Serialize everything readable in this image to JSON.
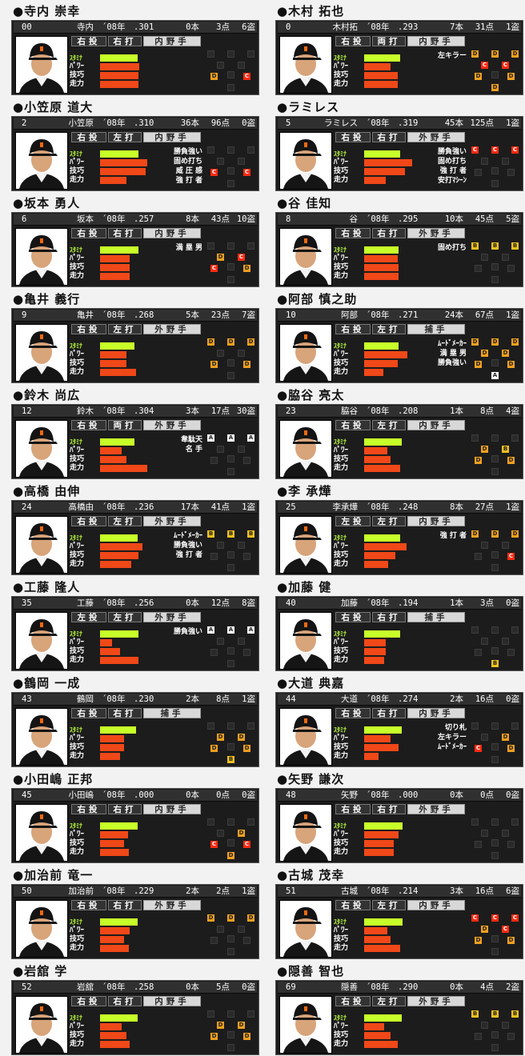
{
  "players": [
    {
      "name": "●寺内 崇幸",
      "num": "00",
      "short": "寺内",
      "year": "´08年",
      "avg": ".301",
      "hr": "0本",
      "rbi": "3点",
      "sb": "6盗",
      "throws": "右投",
      "bats": "右打",
      "position": "内野手",
      "stamina": 0.78,
      "power": 0.82,
      "skill": 0.8,
      "speed": 0.8,
      "skills": [],
      "fielding": {
        "LF": "",
        "CF": "",
        "RF": "",
        "SS": "",
        "2B": "",
        "3B": "D",
        "1B": "C",
        "P": "",
        "C": ""
      }
    },
    {
      "name": "●木村 拓也",
      "num": "0",
      "short": "木村拓",
      "year": "´08年",
      "avg": ".293",
      "hr": "7本",
      "rbi": "31点",
      "sb": "1盗",
      "throws": "右投",
      "bats": "両打",
      "position": "内野手",
      "stamina": 0.75,
      "power": 0.55,
      "skill": 0.7,
      "speed": 0.7,
      "skills": [
        "左キラー"
      ],
      "fielding": {
        "LF": "D",
        "CF": "D",
        "RF": "D",
        "SS": "C",
        "2B": "C",
        "3B": "D",
        "1B": "D",
        "P": "",
        "C": "D"
      }
    },
    {
      "name": "●小笠原 道大",
      "num": "2",
      "short": "小笠原",
      "year": "´08年",
      "avg": ".310",
      "hr": "36本",
      "rbi": "96点",
      "sb": "0盗",
      "throws": "右投",
      "bats": "左打",
      "position": "内野手",
      "stamina": 0.8,
      "power": 0.98,
      "skill": 0.95,
      "speed": 0.55,
      "skills": [
        "勝負強い",
        "固め打ち",
        "威 圧 感",
        "強 打 者"
      ],
      "fielding": {
        "LF": "",
        "CF": "",
        "RF": "",
        "SS": "",
        "2B": "",
        "3B": "C",
        "1B": "C",
        "P": "",
        "C": ""
      }
    },
    {
      "name": "●ラミレス",
      "num": "5",
      "short": "ラミレス",
      "year": "´08年",
      "avg": ".319",
      "hr": "45本",
      "rbi": "125点",
      "sb": "1盗",
      "throws": "右投",
      "bats": "右打",
      "position": "外野手",
      "stamina": 0.75,
      "power": 1.0,
      "skill": 0.85,
      "speed": 0.45,
      "skills": [
        "勝負強い",
        "固め打ち",
        "強 打 者",
        "安打ﾏｼｰﾝ"
      ],
      "fielding": {
        "LF": "C",
        "CF": "C",
        "RF": "C",
        "SS": "",
        "2B": "",
        "3B": "",
        "1B": "",
        "P": "",
        "C": ""
      }
    },
    {
      "name": "●坂本 勇人",
      "num": "6",
      "short": "坂本",
      "year": "´08年",
      "avg": ".257",
      "hr": "8本",
      "rbi": "43点",
      "sb": "10盗",
      "throws": "右投",
      "bats": "右打",
      "position": "内野手",
      "stamina": 0.8,
      "power": 0.62,
      "skill": 0.62,
      "speed": 0.62,
      "skills": [
        "満 塁 男"
      ],
      "fielding": {
        "LF": "",
        "CF": "",
        "RF": "",
        "SS": "D",
        "2B": "C",
        "3B": "C",
        "1B": "D",
        "P": "",
        "C": ""
      }
    },
    {
      "name": "●谷 佳知",
      "num": "8",
      "short": "谷",
      "year": "´08年",
      "avg": ".295",
      "hr": "10本",
      "rbi": "45点",
      "sb": "5盗",
      "throws": "右投",
      "bats": "右打",
      "position": "外野手",
      "stamina": 0.72,
      "power": 0.7,
      "skill": 0.72,
      "speed": 0.72,
      "skills": [
        "固め打ち"
      ],
      "fielding": {
        "LF": "B",
        "CF": "B",
        "RF": "B",
        "SS": "",
        "2B": "",
        "3B": "",
        "1B": "",
        "P": "",
        "C": ""
      }
    },
    {
      "name": "●亀井 義行",
      "num": "9",
      "short": "亀井",
      "year": "´08年",
      "avg": ".268",
      "hr": "5本",
      "rbi": "23点",
      "sb": "7盗",
      "throws": "右投",
      "bats": "左打",
      "position": "外野手",
      "stamina": 0.72,
      "power": 0.55,
      "skill": 0.55,
      "speed": 0.75,
      "skills": [],
      "fielding": {
        "LF": "D",
        "CF": "D",
        "RF": "D",
        "SS": "",
        "2B": "",
        "3B": "D",
        "1B": "D",
        "P": "",
        "C": ""
      }
    },
    {
      "name": "●阿部 慎之助",
      "num": "10",
      "short": "阿部",
      "year": "´08年",
      "avg": ".271",
      "hr": "24本",
      "rbi": "67点",
      "sb": "1盗",
      "throws": "右投",
      "bats": "左打",
      "position": "捕手",
      "stamina": 0.72,
      "power": 0.9,
      "skill": 0.7,
      "speed": 0.4,
      "skills": [
        "ﾑｰﾄﾞﾒｰｶｰ",
        "満 塁 男",
        "勝負強い"
      ],
      "fielding": {
        "LF": "D",
        "CF": "D",
        "RF": "D",
        "SS": "D",
        "2B": "D",
        "3B": "D",
        "1B": "D",
        "P": "",
        "C": "A"
      }
    },
    {
      "name": "●鈴木 尚広",
      "num": "12",
      "short": "鈴木",
      "year": "´08年",
      "avg": ".304",
      "hr": "3本",
      "rbi": "17点",
      "sb": "30盗",
      "throws": "右投",
      "bats": "両打",
      "position": "外野手",
      "stamina": 0.72,
      "power": 0.45,
      "skill": 0.55,
      "speed": 0.98,
      "skills": [
        "韋駄天",
        "名 手"
      ],
      "fielding": {
        "LF": "A",
        "CF": "A",
        "RF": "A",
        "SS": "",
        "2B": "",
        "3B": "",
        "1B": "",
        "P": "",
        "C": ""
      }
    },
    {
      "name": "●脇谷 亮太",
      "num": "23",
      "short": "脇谷",
      "year": "´08年",
      "avg": ".208",
      "hr": "1本",
      "rbi": "8点",
      "sb": "4盗",
      "throws": "右投",
      "bats": "左打",
      "position": "内野手",
      "stamina": 0.78,
      "power": 0.48,
      "skill": 0.55,
      "speed": 0.75,
      "skills": [],
      "fielding": {
        "LF": "",
        "CF": "",
        "RF": "",
        "SS": "D",
        "2B": "B",
        "3B": "D",
        "1B": "D",
        "P": "",
        "C": ""
      }
    },
    {
      "name": "●高橋 由伸",
      "num": "24",
      "short": "高橋由",
      "year": "´08年",
      "avg": ".236",
      "hr": "17本",
      "rbi": "41点",
      "sb": "1盗",
      "throws": "右投",
      "bats": "左打",
      "position": "外野手",
      "stamina": 0.78,
      "power": 0.88,
      "skill": 0.8,
      "speed": 0.65,
      "skills": [
        "ﾑｰﾄﾞﾒｰｶｰ",
        "勝負強い",
        "強 打 者"
      ],
      "fielding": {
        "LF": "B",
        "CF": "B",
        "RF": "B",
        "SS": "",
        "2B": "",
        "3B": "",
        "1B": "",
        "P": "",
        "C": ""
      }
    },
    {
      "name": "●李 承燁",
      "num": "25",
      "short": "李承燁",
      "year": "´08年",
      "avg": ".248",
      "hr": "8本",
      "rbi": "27点",
      "sb": "1盗",
      "throws": "左投",
      "bats": "左打",
      "position": "内野手",
      "stamina": 0.75,
      "power": 0.88,
      "skill": 0.65,
      "speed": 0.5,
      "skills": [
        "強 打 者"
      ],
      "fielding": {
        "LF": "D",
        "CF": "D",
        "RF": "D",
        "SS": "",
        "2B": "",
        "3B": "",
        "1B": "C",
        "P": "",
        "C": ""
      }
    },
    {
      "name": "●工藤 隆人",
      "num": "35",
      "short": "工藤",
      "year": "´08年",
      "avg": ".256",
      "hr": "0本",
      "rbi": "12点",
      "sb": "8盗",
      "throws": "左投",
      "bats": "左打",
      "position": "外野手",
      "stamina": 0.8,
      "power": 0.25,
      "skill": 0.42,
      "speed": 0.8,
      "skills": [
        "勝負強い"
      ],
      "fielding": {
        "LF": "A",
        "CF": "A",
        "RF": "A",
        "SS": "",
        "2B": "",
        "3B": "",
        "1B": "",
        "P": "",
        "C": ""
      }
    },
    {
      "name": "●加藤 健",
      "num": "40",
      "short": "加藤",
      "year": "´08年",
      "avg": ".194",
      "hr": "1本",
      "rbi": "3点",
      "sb": "0盗",
      "throws": "右投",
      "bats": "右打",
      "position": "捕手",
      "stamina": 0.75,
      "power": 0.45,
      "skill": 0.45,
      "speed": 0.42,
      "skills": [],
      "fielding": {
        "LF": "",
        "CF": "",
        "RF": "",
        "SS": "",
        "2B": "",
        "3B": "",
        "1B": "",
        "P": "",
        "C": "B"
      }
    },
    {
      "name": "●鶴岡 一成",
      "num": "43",
      "short": "鶴岡",
      "year": "´08年",
      "avg": ".230",
      "hr": "2本",
      "rbi": "8点",
      "sb": "1盗",
      "throws": "右投",
      "bats": "右打",
      "position": "捕手",
      "stamina": 0.75,
      "power": 0.5,
      "skill": 0.5,
      "speed": 0.42,
      "skills": [],
      "fielding": {
        "LF": "",
        "CF": "",
        "RF": "",
        "SS": "D",
        "2B": "D",
        "3B": "D",
        "1B": "D",
        "P": "",
        "C": "B"
      }
    },
    {
      "name": "●大道 典嘉",
      "num": "44",
      "short": "大道",
      "year": "´08年",
      "avg": ".274",
      "hr": "2本",
      "rbi": "16点",
      "sb": "0盗",
      "throws": "右投",
      "bats": "右打",
      "position": "内野手",
      "stamina": 0.78,
      "power": 0.55,
      "skill": 0.72,
      "speed": 0.3,
      "skills": [
        "切り札",
        "左キラー",
        "ﾑｰﾄﾞﾒｰｶｰ"
      ],
      "fielding": {
        "LF": "",
        "CF": "",
        "RF": "",
        "SS": "",
        "2B": "D",
        "3B": "C",
        "1B": "D",
        "P": "",
        "C": ""
      }
    },
    {
      "name": "●小田嶋 正邦",
      "num": "45",
      "short": "小田嶋",
      "year": "´08年",
      "avg": ".000",
      "hr": "0本",
      "rbi": "0点",
      "sb": "0盗",
      "throws": "右投",
      "bats": "右打",
      "position": "内野手",
      "stamina": 0.78,
      "power": 0.58,
      "skill": 0.5,
      "speed": 0.6,
      "skills": [],
      "fielding": {
        "LF": "",
        "CF": "",
        "RF": "",
        "SS": "",
        "2B": "D",
        "3B": "C",
        "1B": "C",
        "P": "",
        "C": "D"
      }
    },
    {
      "name": "●矢野 謙次",
      "num": "48",
      "short": "矢野",
      "year": "´08年",
      "avg": ".000",
      "hr": "0本",
      "rbi": "0点",
      "sb": "0盗",
      "throws": "右投",
      "bats": "右打",
      "position": "外野手",
      "stamina": 0.8,
      "power": 0.72,
      "skill": 0.62,
      "speed": 0.62,
      "skills": [],
      "fielding": {
        "LF": "",
        "CF": "",
        "RF": "",
        "SS": "",
        "2B": "",
        "3B": "",
        "1B": "",
        "P": "",
        "C": ""
      }
    },
    {
      "name": "●加治前 竜一",
      "num": "50",
      "short": "加治前",
      "year": "´08年",
      "avg": ".229",
      "hr": "2本",
      "rbi": "2点",
      "sb": "1盗",
      "throws": "右投",
      "bats": "右打",
      "position": "外野手",
      "stamina": 0.78,
      "power": 0.62,
      "skill": 0.5,
      "speed": 0.6,
      "skills": [],
      "fielding": {
        "LF": "D",
        "CF": "D",
        "RF": "D",
        "SS": "",
        "2B": "",
        "3B": "",
        "1B": "",
        "P": "",
        "C": ""
      }
    },
    {
      "name": "●古城 茂幸",
      "num": "51",
      "short": "古城",
      "year": "´08年",
      "avg": ".214",
      "hr": "3本",
      "rbi": "16点",
      "sb": "6盗",
      "throws": "右投",
      "bats": "左打",
      "position": "内野手",
      "stamina": 0.8,
      "power": 0.48,
      "skill": 0.55,
      "speed": 0.75,
      "skills": [],
      "fielding": {
        "LF": "C",
        "CF": "C",
        "RF": "C",
        "SS": "D",
        "2B": "C",
        "3B": "D",
        "1B": "D",
        "P": "",
        "C": ""
      }
    },
    {
      "name": "●岩舘 学",
      "num": "52",
      "short": "岩舘",
      "year": "´08年",
      "avg": ".258",
      "hr": "0本",
      "rbi": "5点",
      "sb": "0盗",
      "throws": "右投",
      "bats": "右打",
      "position": "内野手",
      "stamina": 0.78,
      "power": 0.45,
      "skill": 0.55,
      "speed": 0.62,
      "skills": [],
      "fielding": {
        "LF": "",
        "CF": "",
        "RF": "",
        "SS": "D",
        "2B": "D",
        "3B": "D",
        "1B": "D",
        "P": "",
        "C": ""
      }
    },
    {
      "name": "●隠善 智也",
      "num": "69",
      "short": "隠善",
      "year": "´08年",
      "avg": ".290",
      "hr": "0本",
      "rbi": "4点",
      "sb": "2盗",
      "throws": "右投",
      "bats": "左打",
      "position": "外野手",
      "stamina": 0.78,
      "power": 0.42,
      "skill": 0.55,
      "speed": 0.7,
      "skills": [],
      "fielding": {
        "LF": "B",
        "CF": "B",
        "RF": "B",
        "SS": "",
        "2B": "",
        "3B": "",
        "1B": "",
        "P": "",
        "C": ""
      }
    }
  ],
  "labels": {
    "stamina": "ｽﾀﾐﾅ",
    "power": "ﾊﾟﾜｰ",
    "skill": "技巧",
    "speed": "走力"
  },
  "colors": {
    "panel": "#1c1c1c",
    "stamina_bar": "#c8ff28",
    "stat_bar": "#f04818",
    "grade_A": "#ffffff",
    "grade_B": "#f0c020",
    "grade_C": "#ff2a10",
    "grade_D": "#f0a020"
  }
}
